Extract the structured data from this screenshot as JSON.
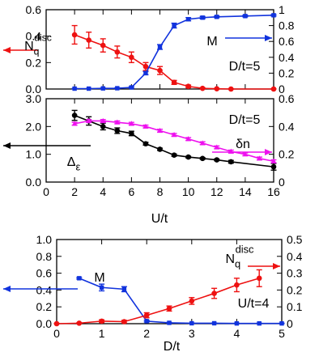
{
  "chart_data": [
    {
      "type": "line",
      "panel": "top",
      "x_range": [
        0,
        16
      ],
      "x_ticks": [
        0,
        2,
        4,
        6,
        8,
        10,
        12,
        14,
        16
      ],
      "left_axis": {
        "range": [
          0,
          0.6
        ],
        "ticks": [
          "0.0",
          "0.2",
          "0.4",
          "0.6"
        ]
      },
      "right_axis": {
        "range": [
          0,
          1
        ],
        "ticks": [
          "0",
          "0.2",
          "0.4",
          "0.6",
          "0.8",
          "1"
        ]
      },
      "annotation": "D/t=5",
      "series": [
        {
          "name": "N_q^disc",
          "name_parts": {
            "base": "N",
            "sub": "q",
            "sup": "disc"
          },
          "axis": "left",
          "color": "#ee1111",
          "arrow": "left",
          "marker": "circle",
          "x": [
            2,
            3,
            4,
            5,
            6,
            7,
            8,
            9,
            10,
            11,
            12,
            13,
            16
          ],
          "y": [
            0.41,
            0.37,
            0.33,
            0.28,
            0.24,
            0.17,
            0.14,
            0.05,
            0.02,
            0.005,
            0.002,
            0.0,
            0.0
          ],
          "err": [
            0.07,
            0.06,
            0.05,
            0.045,
            0.04,
            0.03,
            0.03,
            0.015,
            0.01,
            0.005,
            0.002,
            0.002,
            0.002
          ]
        },
        {
          "name": "M",
          "axis": "right",
          "color": "#1133dd",
          "arrow": "right",
          "marker": "square",
          "x": [
            2,
            3,
            4,
            5,
            6,
            7,
            8,
            9,
            10,
            11,
            12,
            14,
            16
          ],
          "y": [
            0.005,
            0.005,
            0.008,
            0.01,
            0.02,
            0.2,
            0.53,
            0.8,
            0.88,
            0.9,
            0.91,
            0.92,
            0.93
          ],
          "err": [
            0.003,
            0.003,
            0.004,
            0.005,
            0.01,
            0.02,
            0.03,
            0.03,
            0.02,
            0.015,
            0.01,
            0.01,
            0.01
          ]
        }
      ]
    },
    {
      "type": "line",
      "panel": "middle",
      "x_range": [
        0,
        16
      ],
      "x_ticks": [
        0,
        2,
        4,
        6,
        8,
        10,
        12,
        14,
        16
      ],
      "xlabel": "U/t",
      "left_axis": {
        "range": [
          0,
          3
        ],
        "ticks": [
          "0.0",
          "1.0",
          "2.0",
          "3.0"
        ]
      },
      "right_axis": {
        "range": [
          0,
          0.6
        ],
        "ticks": [
          "0",
          "0.2",
          "0.4",
          "0.6"
        ]
      },
      "annotation": "D/t=5",
      "series": [
        {
          "name": "Δ_ε",
          "name_parts": {
            "base": "Δ",
            "sub": "ε"
          },
          "axis": "left",
          "color": "#000000",
          "arrow": "left",
          "marker": "circle",
          "x": [
            2,
            3,
            4,
            5,
            6,
            7,
            8,
            9,
            10,
            11,
            12,
            13,
            16
          ],
          "y": [
            2.4,
            2.2,
            2.0,
            1.85,
            1.75,
            1.38,
            1.18,
            0.97,
            0.9,
            0.85,
            0.8,
            0.73,
            0.55
          ],
          "err": [
            0.18,
            0.15,
            0.12,
            0.1,
            0.08,
            0.05,
            0.04,
            0.04,
            0.03,
            0.03,
            0.03,
            0.05,
            0.12
          ]
        },
        {
          "name": "δn",
          "axis": "right",
          "color": "#ee11ee",
          "arrow": "right",
          "marker": "triangle",
          "x": [
            2,
            3,
            4,
            5,
            6,
            7,
            8,
            9,
            10,
            11,
            12,
            13,
            14,
            15,
            16
          ],
          "y": [
            0.42,
            0.44,
            0.44,
            0.43,
            0.42,
            0.4,
            0.37,
            0.34,
            0.31,
            0.28,
            0.25,
            0.22,
            0.2,
            0.17,
            0.15
          ],
          "err": [
            0.01,
            0.01,
            0.01,
            0.01,
            0.01,
            0.01,
            0.01,
            0.01,
            0.01,
            0.01,
            0.01,
            0.01,
            0.01,
            0.01,
            0.01
          ]
        }
      ]
    },
    {
      "type": "line",
      "panel": "bottom",
      "x_range": [
        0,
        5
      ],
      "x_ticks": [
        0,
        1,
        2,
        3,
        4,
        5
      ],
      "xlabel": "D/t",
      "left_axis": {
        "range": [
          0,
          1
        ],
        "ticks": [
          "0.0",
          "0.2",
          "0.4",
          "0.6",
          "0.8",
          "1.0"
        ]
      },
      "right_axis": {
        "range": [
          0,
          0.5
        ],
        "ticks": [
          "0",
          "0.1",
          "0.2",
          "0.3",
          "0.4",
          "0.5"
        ]
      },
      "annotation": "U/t=4",
      "series": [
        {
          "name": "M",
          "axis": "left",
          "color": "#1133dd",
          "arrow": "left",
          "marker": "square",
          "x": [
            0.5,
            1.0,
            1.5,
            2.0,
            2.5,
            3.0,
            3.5,
            4.0,
            4.5,
            5.0
          ],
          "y": [
            0.54,
            0.43,
            0.41,
            0.03,
            0.01,
            0.005,
            0.005,
            0.003,
            0.003,
            0.003
          ],
          "err": [
            0.01,
            0.04,
            0.03,
            0.01,
            0.005,
            0.003,
            0.003,
            0.003,
            0.003,
            0.003
          ]
        },
        {
          "name": "N_q^disc",
          "name_parts": {
            "base": "N",
            "sub": "q",
            "sup": "disc"
          },
          "axis": "right",
          "color": "#ee1111",
          "arrow": "right",
          "marker": "circle",
          "x": [
            0.0,
            0.5,
            1.0,
            1.5,
            2.0,
            2.5,
            3.0,
            3.5,
            4.0,
            4.5
          ],
          "y": [
            0.0,
            0.003,
            0.015,
            0.012,
            0.05,
            0.09,
            0.135,
            0.18,
            0.23,
            0.27
          ],
          "err": [
            0.002,
            0.003,
            0.008,
            0.008,
            0.015,
            0.015,
            0.02,
            0.03,
            0.04,
            0.05
          ]
        }
      ]
    }
  ]
}
